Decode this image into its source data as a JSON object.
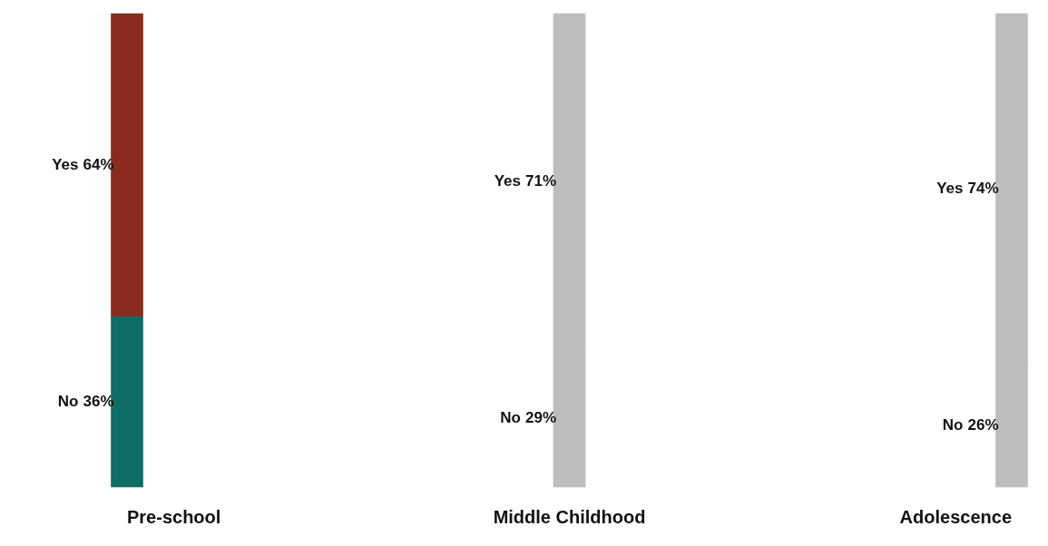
{
  "chart_data": {
    "type": "bar",
    "categories": [
      "Pre-school",
      "Middle Childhood",
      "Adolescence"
    ],
    "stacked": true,
    "legend": false,
    "series": [
      {
        "name": "No",
        "values": [
          36,
          29,
          26
        ],
        "value_labels": [
          "36%",
          "29%",
          "26%"
        ],
        "colors": [
          "#0e6e66",
          "#bdbdbd",
          "#bdbdbd"
        ]
      },
      {
        "name": "Yes",
        "values": [
          64,
          71,
          74
        ],
        "value_labels": [
          "64%",
          "71%",
          "74%"
        ],
        "colors": [
          "#8b2a1e",
          "#bdbdbd",
          "#bdbdbd"
        ]
      }
    ]
  }
}
